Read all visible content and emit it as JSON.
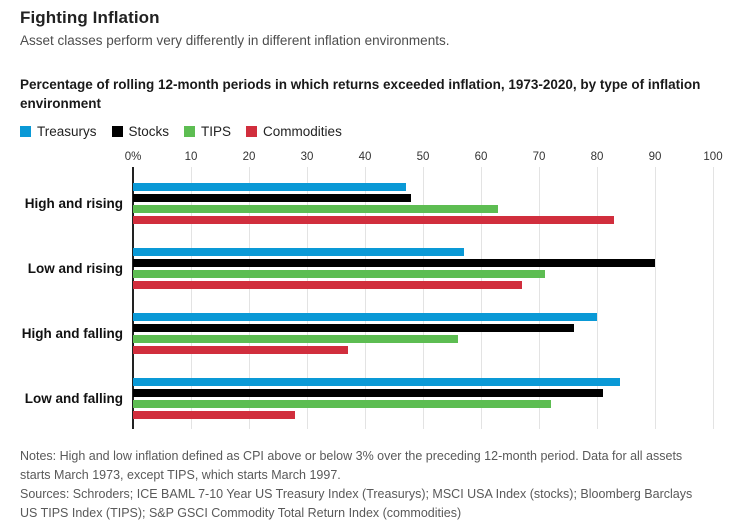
{
  "header": {
    "title": "Fighting Inflation",
    "deck": "Asset classes perform very differently in different inflation environments.",
    "subhead": "Percentage of rolling 12-month periods in which returns exceeded inflation, 1973-2020, by type of inflation environment"
  },
  "colors": {
    "treasurys": "#0a99d6",
    "stocks": "#000000",
    "tips": "#5dbd52",
    "commodities": "#d12e3d",
    "gridline": "#e3e3e3",
    "zero_line": "#222222"
  },
  "chart_data": {
    "type": "bar",
    "orientation": "horizontal",
    "title": "Percentage of rolling 12-month periods in which returns exceeded inflation, 1973-2020, by type of inflation environment",
    "categories": [
      "High and rising",
      "Low and rising",
      "High and falling",
      "Low and falling"
    ],
    "series": [
      {
        "name": "Treasurys",
        "color": "#0a99d6",
        "values": [
          47,
          57,
          80,
          84
        ]
      },
      {
        "name": "Stocks",
        "color": "#000000",
        "values": [
          48,
          90,
          76,
          81
        ]
      },
      {
        "name": "TIPS",
        "color": "#5dbd52",
        "values": [
          63,
          71,
          56,
          72
        ]
      },
      {
        "name": "Commodities",
        "color": "#d12e3d",
        "values": [
          83,
          67,
          37,
          28
        ]
      }
    ],
    "xlim": [
      0,
      100
    ],
    "x_ticks": [
      "0%",
      "10",
      "20",
      "30",
      "40",
      "50",
      "60",
      "70",
      "80",
      "90",
      "100"
    ],
    "x_tick_values": [
      0,
      10,
      20,
      30,
      40,
      50,
      60,
      70,
      80,
      90,
      100
    ],
    "grid": true,
    "legend_position": "top"
  },
  "notes": {
    "notes_text": "Notes: High and low inflation defined as CPI above or below 3% over the preceding 12-month period. Data for all assets starts March 1973, except TIPS, which starts March 1997.",
    "sources_text": "Sources: Schroders; ICE BAML 7-10 Year US Treasury Index (Treasurys); MSCI USA Index (stocks); Bloomberg Barclays US TIPS Index (TIPS); S&P GSCI Commodity Total Return Index (commodities)"
  }
}
